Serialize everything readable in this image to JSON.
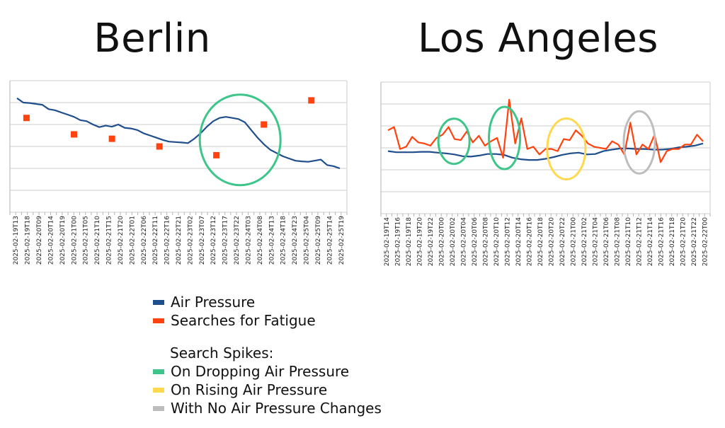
{
  "titles": {
    "berlin": "Berlin",
    "la": "Los Angeles"
  },
  "colors": {
    "pressure": "#1f4e8c",
    "searches": "#ff420e",
    "dropping": "#3ec58a",
    "rising": "#ffd84d",
    "nochange": "#bdbdbd",
    "grid": "#cccccc",
    "axis": "#b3b3b3"
  },
  "legend": {
    "pressure": "Air Pressure",
    "searches": "Searches for Fatigue",
    "spikes_title": "Search Spikes:",
    "dropping": "On Dropping Air Pressure",
    "rising": "On Rising Air Pressure",
    "nochange": "With No Air Pressure Changes"
  },
  "chart_data": [
    {
      "name": "Berlin",
      "type": "line",
      "title": "Berlin",
      "y_ticks_shown": false,
      "grid": true,
      "x_tick_labels": [
        "2025-02-19T13",
        "2025-02-19T18",
        "2025-02-20T09",
        "2025-02-20T14",
        "2025-02-20T19",
        "2025-02-21T00",
        "2025-02-21T05",
        "2025-02-21T10",
        "2025-02-21T15",
        "2025-02-21T20",
        "2025-02-22T01",
        "2025-02-22T06",
        "2025-02-22T11",
        "2025-02-22T16",
        "2025-02-22T21",
        "2025-02-23T02",
        "2025-02-23T07",
        "2025-02-23T12",
        "2025-02-23T17",
        "2025-02-23T22",
        "2025-02-24T03",
        "2025-02-24T08",
        "2025-02-24T13",
        "2025-02-24T18",
        "2025-02-24T23",
        "2025-02-25T04",
        "2025-02-25T09",
        "2025-02-25T14",
        "2025-02-25T19"
      ],
      "ylim": [
        0,
        6
      ],
      "series": [
        {
          "name": "Air Pressure",
          "kind": "line",
          "values": [
            5.2,
            5.0,
            4.98,
            4.94,
            4.9,
            4.7,
            4.65,
            4.55,
            4.45,
            4.35,
            4.2,
            4.15,
            4.0,
            3.88,
            3.95,
            3.9,
            4.0,
            3.85,
            3.82,
            3.75,
            3.6,
            3.5,
            3.4,
            3.3,
            3.22,
            3.2,
            3.18,
            3.15,
            3.35,
            3.6,
            3.9,
            4.15,
            4.3,
            4.35,
            4.3,
            4.25,
            4.1,
            3.75,
            3.4,
            3.1,
            2.85,
            2.7,
            2.55,
            2.45,
            2.35,
            2.32,
            2.3,
            2.35,
            2.4,
            2.15,
            2.1,
            2.0
          ]
        },
        {
          "name": "Searches for Fatigue",
          "kind": "points",
          "points": [
            [
              1,
              4.3
            ],
            [
              6,
              3.55
            ],
            [
              10,
              3.35
            ],
            [
              15,
              3.0
            ],
            [
              21,
              2.6
            ],
            [
              26,
              4.0
            ],
            [
              31,
              5.1
            ]
          ]
        }
      ],
      "highlights": [
        {
          "type": "dropping",
          "center_x": 23.5,
          "center_y": 3.3
        }
      ]
    },
    {
      "name": "Los Angeles",
      "type": "line",
      "title": "Los Angeles",
      "y_ticks_shown": false,
      "grid": true,
      "x_tick_labels": [
        "2025-02-19T14",
        "2025-02-19T16",
        "2025-02-19T18",
        "2025-02-19T20",
        "2025-02-19T22",
        "2025-02-20T00",
        "2025-02-20T02",
        "2025-02-20T04",
        "2025-02-20T06",
        "2025-02-20T08",
        "2025-02-20T10",
        "2025-02-20T12",
        "2025-02-20T14",
        "2025-02-20T16",
        "2025-02-20T18",
        "2025-02-20T20",
        "2025-02-20T22",
        "2025-02-21T00",
        "2025-02-21T02",
        "2025-02-21T04",
        "2025-02-21T06",
        "2025-02-21T08",
        "2025-02-21T10",
        "2025-02-21T12",
        "2025-02-21T14",
        "2025-02-21T16",
        "2025-02-21T18",
        "2025-02-21T20",
        "2025-02-21T22",
        "2025-02-22T00"
      ],
      "ylim": [
        0,
        6
      ],
      "series": [
        {
          "name": "Air Pressure",
          "kind": "line",
          "values": [
            2.85,
            2.8,
            2.8,
            2.8,
            2.82,
            2.82,
            2.78,
            2.75,
            2.7,
            2.62,
            2.6,
            2.65,
            2.72,
            2.72,
            2.68,
            2.55,
            2.48,
            2.45,
            2.45,
            2.5,
            2.58,
            2.68,
            2.75,
            2.78,
            2.7,
            2.72,
            2.85,
            2.92,
            2.97,
            2.97,
            2.95,
            2.95,
            2.92,
            2.92,
            2.95,
            3.02,
            3.05,
            3.1,
            3.2
          ]
        },
        {
          "name": "Searches for Fatigue",
          "kind": "line",
          "values": [
            3.8,
            3.95,
            2.95,
            3.05,
            3.5,
            3.25,
            3.2,
            3.1,
            3.45,
            3.6,
            3.95,
            3.4,
            3.35,
            3.75,
            3.25,
            3.55,
            3.1,
            3.3,
            3.45,
            2.55,
            5.2,
            3.2,
            4.35,
            2.95,
            3.05,
            2.7,
            2.95,
            2.95,
            2.85,
            3.4,
            3.35,
            3.8,
            3.55,
            3.2,
            3.05,
            3.0,
            2.95,
            3.3,
            3.15,
            2.7,
            4.15,
            2.7,
            3.15,
            2.95,
            3.6,
            2.35,
            2.85,
            2.95,
            2.95,
            3.15,
            3.15,
            3.6,
            3.3
          ]
        }
      ],
      "highlights": [
        {
          "type": "dropping",
          "center_x": 6.5,
          "center_y": 3.3
        },
        {
          "type": "dropping",
          "center_x": 11.0,
          "center_y": 3.45
        },
        {
          "type": "rising",
          "center_x": 16.5,
          "center_y": 2.95
        },
        {
          "type": "nochange",
          "center_x": 23.0,
          "center_y": 3.25
        }
      ]
    }
  ]
}
